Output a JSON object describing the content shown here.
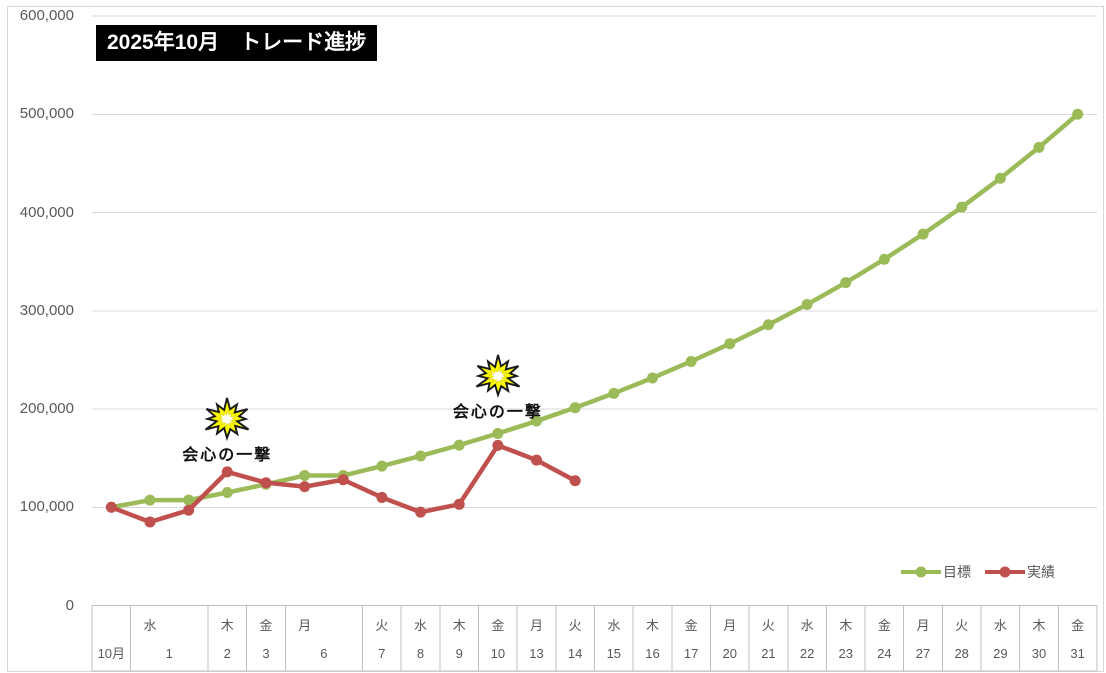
{
  "title": "2025年10月　トレード進捗",
  "annotations": [
    {
      "label": "会心の一撃",
      "slot": 3
    },
    {
      "label": "会心の一撃",
      "slot": 10
    }
  ],
  "colors": {
    "target_green": "#9BBB59",
    "actual_red": "#C0504D",
    "gridline": "#D9D9D9",
    "axis_line": "#BFBFBF",
    "axis_text": "#595959",
    "title_bg": "#000000",
    "title_text": "#FFFFFF",
    "starburst_yellow": "#FFFF00"
  },
  "chart_data": {
    "type": "line",
    "title": "2025年10月　トレード進捗",
    "xlabel": "",
    "ylabel": "",
    "ylim": [
      0,
      600000
    ],
    "y_tick_interval": 100000,
    "y_tick_labels_top_down": [
      "600,000",
      "500,000",
      "400,000",
      "300,000",
      "200,000",
      "100,000",
      "0"
    ],
    "grid": "horizontal-light",
    "legend_position": "inside-bottom-right",
    "x_cells": [
      {
        "dow": "",
        "day": "10月",
        "span": 1
      },
      {
        "dow": "水",
        "day": "1",
        "span": 2
      },
      {
        "dow": "木",
        "day": "2",
        "span": 1
      },
      {
        "dow": "金",
        "day": "3",
        "span": 1
      },
      {
        "dow": "月",
        "day": "6",
        "span": 2
      },
      {
        "dow": "火",
        "day": "7",
        "span": 1
      },
      {
        "dow": "水",
        "day": "8",
        "span": 1
      },
      {
        "dow": "木",
        "day": "9",
        "span": 1
      },
      {
        "dow": "金",
        "day": "10",
        "span": 1
      },
      {
        "dow": "月",
        "day": "13",
        "span": 1
      },
      {
        "dow": "火",
        "day": "14",
        "span": 1
      },
      {
        "dow": "水",
        "day": "15",
        "span": 1
      },
      {
        "dow": "木",
        "day": "16",
        "span": 1
      },
      {
        "dow": "金",
        "day": "17",
        "span": 1
      },
      {
        "dow": "月",
        "day": "20",
        "span": 1
      },
      {
        "dow": "火",
        "day": "21",
        "span": 1
      },
      {
        "dow": "水",
        "day": "22",
        "span": 1
      },
      {
        "dow": "木",
        "day": "23",
        "span": 1
      },
      {
        "dow": "金",
        "day": "24",
        "span": 1
      },
      {
        "dow": "月",
        "day": "27",
        "span": 1
      },
      {
        "dow": "火",
        "day": "28",
        "span": 1
      },
      {
        "dow": "水",
        "day": "29",
        "span": 1
      },
      {
        "dow": "木",
        "day": "30",
        "span": 1
      },
      {
        "dow": "金",
        "day": "31",
        "span": 1
      }
    ],
    "series": [
      {
        "name": "目標",
        "color": "#9BBB59",
        "values": [
          100000,
          107249,
          107249,
          115023,
          123361,
          132305,
          132305,
          141897,
          152184,
          163217,
          175049,
          187739,
          201349,
          215946,
          231601,
          248391,
          266398,
          285711,
          306424,
          328639,
          352464,
          378017,
          405422,
          434814,
          466337,
          500000
        ]
      },
      {
        "name": "実績",
        "color": "#C0504D",
        "values": [
          100000,
          85000,
          97000,
          136000,
          125000,
          121000,
          128000,
          110000,
          95000,
          103000,
          163000,
          148000,
          127000
        ]
      }
    ]
  }
}
